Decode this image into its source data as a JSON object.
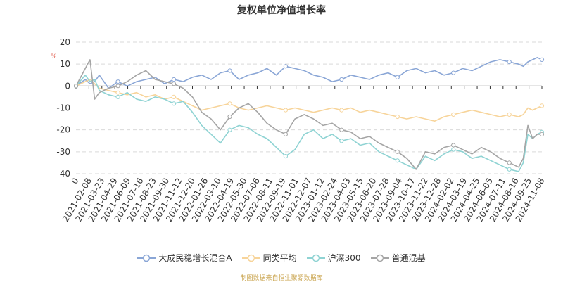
{
  "chart_data": {
    "type": "line",
    "title": "复权单位净值增长率",
    "ylabel_unit": "%",
    "ylim": [
      -40,
      20
    ],
    "yticks": [
      20,
      10,
      0,
      -10,
      -20,
      -30,
      -40
    ],
    "x_tick_labels": [
      "0",
      "2021-02-08",
      "2021-03-23",
      "2021-04-29",
      "2021-06-09",
      "2021-07-16",
      "2021-08-23",
      "2021-09-30",
      "2021-11-12",
      "2021-12-20",
      "2022-01-26",
      "2022-03-10",
      "2022-04-19",
      "2022-05-30",
      "2022-07-06",
      "2022-08-11",
      "2022-09-19",
      "2022-11-01",
      "2022-12-07",
      "2023-01-12",
      "2023-02-24",
      "2023-04-03",
      "2023-05-15",
      "2023-06-20",
      "2023-07-28",
      "2023-09-04",
      "2023-10-17",
      "2023-11-22",
      "2023-12-28",
      "2024-02-02",
      "2024-03-19",
      "2024-04-25",
      "2024-06-05",
      "2024-07-11",
      "2024-08-16",
      "2024-09-25",
      "2024-11-08"
    ],
    "x_axis_note": "x values are evenly spaced position indices 0-100 across the time axis (2021-01 to 2024-11)",
    "series": [
      {
        "name": "大成民稳增长混合A",
        "color": "#8aa6d6",
        "x": [
          0,
          2,
          3,
          4,
          5,
          7,
          9,
          11,
          13,
          15,
          17,
          19,
          21,
          23,
          25,
          27,
          29,
          31,
          33,
          35,
          37,
          39,
          41,
          43,
          45,
          47,
          49,
          51,
          53,
          55,
          57,
          59,
          61,
          63,
          65,
          67,
          69,
          71,
          73,
          75,
          77,
          79,
          81,
          83,
          85,
          87,
          89,
          91,
          93,
          95,
          96,
          97,
          98,
          99,
          100
        ],
        "values": [
          0,
          3,
          1,
          2,
          5,
          -1,
          2,
          0,
          2,
          3,
          4,
          1,
          3,
          2,
          4,
          5,
          3,
          6,
          7,
          3,
          5,
          6,
          8,
          5,
          9,
          8,
          7,
          5,
          4,
          2,
          3,
          5,
          4,
          3,
          5,
          6,
          4,
          7,
          8,
          6,
          7,
          5,
          6,
          8,
          7,
          9,
          11,
          12,
          11,
          10,
          9,
          11,
          12,
          13,
          12
        ]
      },
      {
        "name": "同类平均",
        "color": "#f7d49a",
        "x": [
          0,
          2,
          3,
          4,
          5,
          7,
          9,
          11,
          13,
          15,
          17,
          19,
          21,
          23,
          25,
          27,
          29,
          31,
          33,
          35,
          37,
          39,
          41,
          43,
          45,
          47,
          49,
          51,
          53,
          55,
          57,
          59,
          61,
          63,
          65,
          67,
          69,
          71,
          73,
          75,
          77,
          79,
          81,
          83,
          85,
          87,
          89,
          91,
          93,
          95,
          96,
          97,
          98,
          99,
          100
        ],
        "values": [
          0,
          2,
          3,
          1,
          -1,
          -2,
          -3,
          -4,
          -3,
          -5,
          -4,
          -6,
          -5,
          -7,
          -9,
          -11,
          -10,
          -9,
          -8,
          -10,
          -11,
          -10,
          -9,
          -10,
          -11,
          -10,
          -11,
          -12,
          -11,
          -10,
          -11,
          -10,
          -12,
          -11,
          -12,
          -13,
          -14,
          -15,
          -14,
          -15,
          -16,
          -14,
          -13,
          -12,
          -11,
          -12,
          -13,
          -14,
          -13,
          -14,
          -13,
          -10,
          -11,
          -10,
          -9
        ]
      },
      {
        "name": "沪深300",
        "color": "#8fd3d3",
        "x": [
          0,
          2,
          3,
          4,
          5,
          7,
          9,
          11,
          13,
          15,
          17,
          19,
          21,
          23,
          25,
          27,
          29,
          31,
          33,
          35,
          37,
          39,
          41,
          43,
          45,
          47,
          49,
          51,
          53,
          55,
          57,
          59,
          61,
          63,
          65,
          67,
          69,
          71,
          73,
          75,
          77,
          79,
          81,
          83,
          85,
          87,
          89,
          91,
          93,
          95,
          96,
          97,
          98,
          99,
          100
        ],
        "values": [
          0,
          5,
          2,
          3,
          -2,
          -4,
          -5,
          -3,
          -6,
          -7,
          -5,
          -6,
          -8,
          -7,
          -12,
          -18,
          -22,
          -26,
          -20,
          -18,
          -19,
          -22,
          -24,
          -28,
          -32,
          -29,
          -22,
          -20,
          -24,
          -22,
          -25,
          -24,
          -27,
          -26,
          -30,
          -32,
          -34,
          -36,
          -38,
          -32,
          -34,
          -31,
          -29,
          -30,
          -33,
          -32,
          -34,
          -36,
          -38,
          -39,
          -35,
          -22,
          -24,
          -22,
          -21
        ]
      },
      {
        "name": "普通混基",
        "color": "#a5a5a5",
        "x": [
          0,
          2,
          3,
          4,
          5,
          7,
          9,
          11,
          13,
          15,
          17,
          19,
          21,
          23,
          25,
          27,
          29,
          31,
          33,
          35,
          37,
          39,
          41,
          43,
          45,
          47,
          49,
          51,
          53,
          55,
          57,
          59,
          61,
          63,
          65,
          67,
          69,
          71,
          73,
          75,
          77,
          79,
          81,
          83,
          85,
          87,
          89,
          91,
          93,
          95,
          96,
          97,
          98,
          99,
          100
        ],
        "values": [
          0,
          8,
          12,
          -6,
          -3,
          -1,
          0,
          2,
          5,
          7,
          3,
          2,
          1,
          -1,
          -5,
          -12,
          -15,
          -20,
          -14,
          -10,
          -8,
          -12,
          -17,
          -20,
          -22,
          -15,
          -13,
          -15,
          -18,
          -17,
          -20,
          -21,
          -24,
          -23,
          -26,
          -28,
          -30,
          -33,
          -38,
          -30,
          -31,
          -28,
          -27,
          -29,
          -31,
          -28,
          -30,
          -33,
          -35,
          -37,
          -33,
          -18,
          -24,
          -22,
          -22
        ]
      }
    ]
  },
  "legend": [
    "大成民稳增长混合A",
    "同类平均",
    "沪深300",
    "普通混基"
  ],
  "source": "制图数据来自恒生聚源数据库"
}
